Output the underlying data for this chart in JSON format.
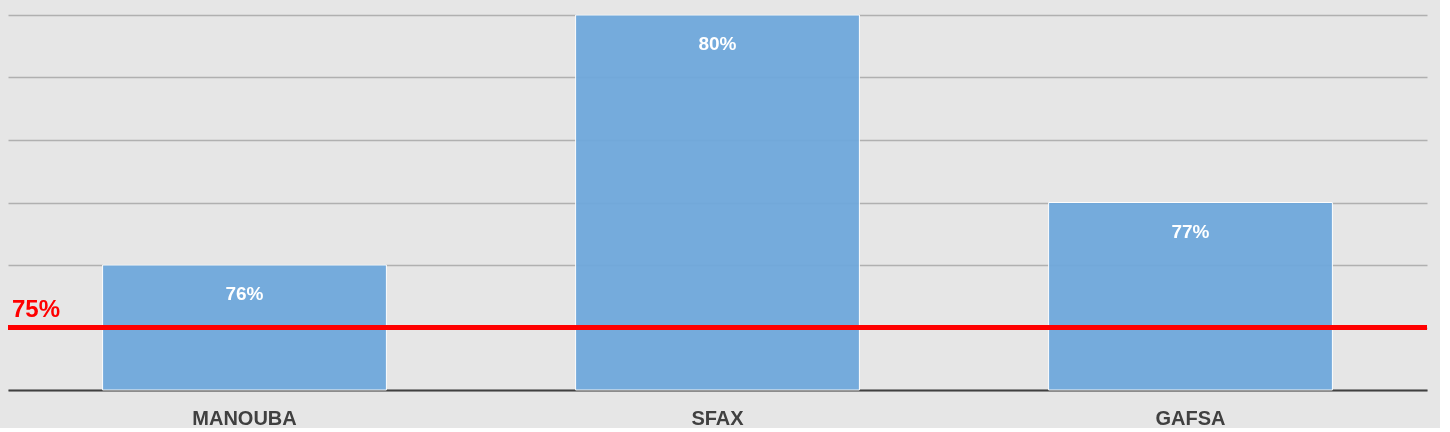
{
  "chart_data": {
    "type": "bar",
    "categories": [
      "MANOUBA",
      "SFAX",
      "GAFSA"
    ],
    "values": [
      76,
      80,
      77
    ],
    "color": "#6fa8dc",
    "value_labels": [
      "76%",
      "80%",
      "77%"
    ],
    "ylim": [
      74,
      80
    ],
    "yticks": [
      {
        "value": 74,
        "label": null
      },
      {
        "value": 75,
        "label": null
      },
      {
        "value": 76,
        "label": null
      },
      {
        "value": 77,
        "label": null
      },
      {
        "value": 78,
        "label": null
      },
      {
        "value": 79,
        "label": null
      },
      {
        "value": 80,
        "label": null
      }
    ],
    "tick_labels": "x",
    "grid": "y",
    "ref_lines": [
      {
        "axis": "y",
        "value": 75,
        "label": "75%",
        "color": "#ff0000",
        "line_style": "solid"
      }
    ]
  }
}
